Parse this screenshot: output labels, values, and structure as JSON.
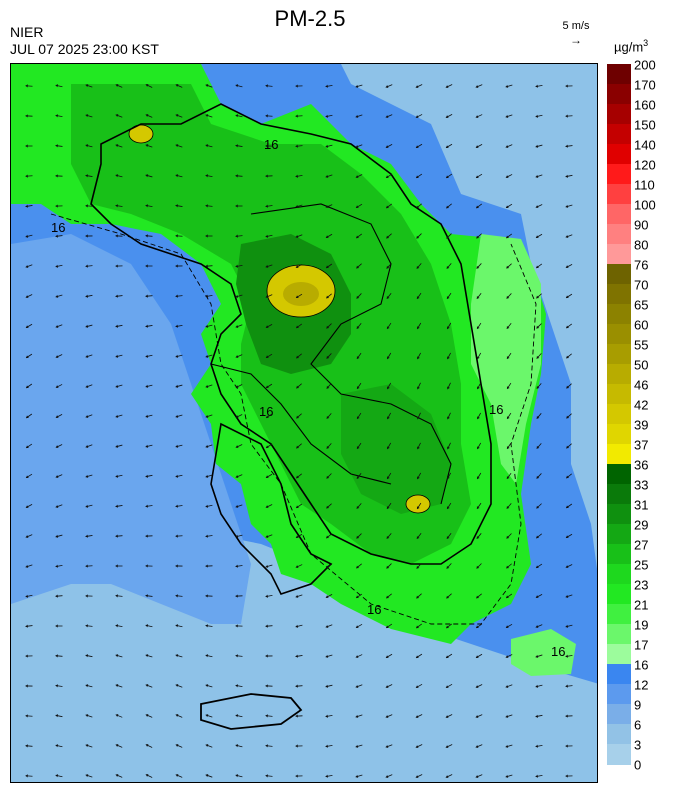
{
  "title": "PM-2.5",
  "agency": "NIER",
  "timestamp": "JUL 07 2025 23:00 KST",
  "wind_reference": {
    "label": "5 m/s",
    "arrow": "→"
  },
  "unit": {
    "base": "µg/m",
    "exponent": "3"
  },
  "contour_label": "16",
  "legend": {
    "labels": [
      "200",
      "170",
      "160",
      "150",
      "140",
      "120",
      "110",
      "100",
      "90",
      "80",
      "76",
      "70",
      "65",
      "60",
      "55",
      "50",
      "46",
      "42",
      "39",
      "37",
      "36",
      "33",
      "31",
      "29",
      "27",
      "25",
      "23",
      "21",
      "19",
      "17",
      "16",
      "12",
      "9",
      "6",
      "3",
      "0"
    ],
    "colors": [
      "#6e0000",
      "#8a0000",
      "#a60000",
      "#c40000",
      "#e00000",
      "#ff1a1a",
      "#ff4040",
      "#ff6666",
      "#ff8080",
      "#ff9999",
      "#6e6300",
      "#7f7300",
      "#8c8200",
      "#9a8f00",
      "#a89d00",
      "#b8ac00",
      "#c6ba00",
      "#d4c800",
      "#e0d600",
      "#f2ea00",
      "#006400",
      "#0a7a0a",
      "#0f900f",
      "#14a814",
      "#18c018",
      "#1ed81e",
      "#22e822",
      "#40f040",
      "#6bf76b",
      "#9cfc9c",
      "#3a86f0",
      "#5c9aee",
      "#7aaee8",
      "#92c2e6",
      "#a7d0ea"
    ]
  },
  "map": {
    "regions": [
      "sea",
      "land-north",
      "land-south",
      "jeju"
    ],
    "icons": [
      "wind-arrow-icon",
      "coastline-icon",
      "hotspot-icon"
    ]
  }
}
